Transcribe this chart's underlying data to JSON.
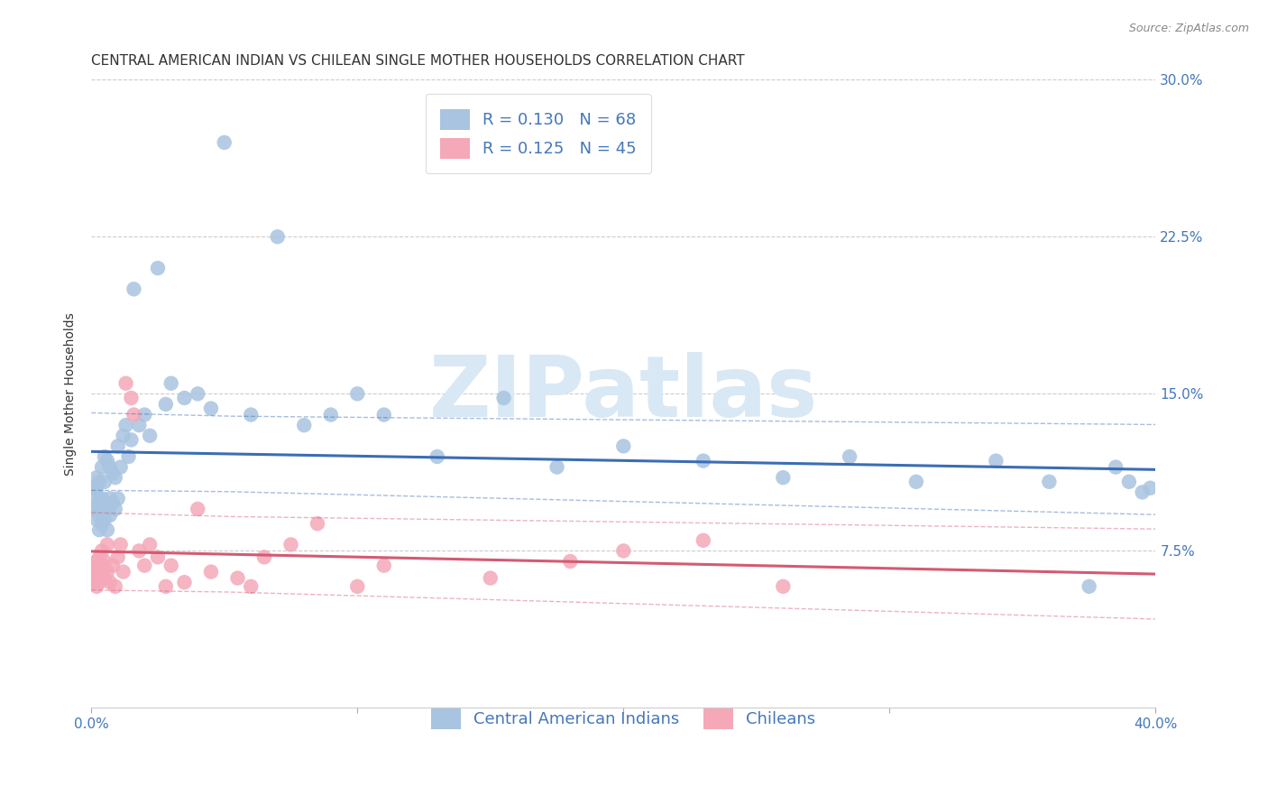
{
  "title": "CENTRAL AMERICAN INDIAN VS CHILEAN SINGLE MOTHER HOUSEHOLDS CORRELATION CHART",
  "source": "Source: ZipAtlas.com",
  "ylabel": "Single Mother Households",
  "xlim": [
    0.0,
    0.4
  ],
  "ylim": [
    0.0,
    0.3
  ],
  "xticks": [
    0.0,
    0.1,
    0.2,
    0.3,
    0.4
  ],
  "xtick_labels": [
    "0.0%",
    "",
    "",
    "",
    "40.0%"
  ],
  "yticks": [
    0.075,
    0.15,
    0.225,
    0.3
  ],
  "right_ytick_labels": [
    "7.5%",
    "15.0%",
    "22.5%",
    "30.0%"
  ],
  "label1": "Central American Indians",
  "label2": "Chileans",
  "blue_color": "#A8C4E0",
  "pink_color": "#F4A8B8",
  "line_blue": "#3B6DB5",
  "line_pink": "#D45A72",
  "watermark": "ZIPatlas",
  "watermark_color": "#D8E8F4",
  "blue_scatter_x": [
    0.001,
    0.001,
    0.001,
    0.002,
    0.002,
    0.002,
    0.002,
    0.003,
    0.003,
    0.003,
    0.003,
    0.004,
    0.004,
    0.004,
    0.004,
    0.005,
    0.005,
    0.005,
    0.005,
    0.006,
    0.006,
    0.006,
    0.007,
    0.007,
    0.007,
    0.008,
    0.008,
    0.009,
    0.009,
    0.01,
    0.01,
    0.011,
    0.012,
    0.013,
    0.014,
    0.015,
    0.016,
    0.018,
    0.02,
    0.022,
    0.025,
    0.028,
    0.03,
    0.035,
    0.04,
    0.045,
    0.05,
    0.06,
    0.07,
    0.08,
    0.09,
    0.1,
    0.11,
    0.13,
    0.155,
    0.175,
    0.2,
    0.23,
    0.26,
    0.285,
    0.31,
    0.34,
    0.36,
    0.375,
    0.385,
    0.39,
    0.395,
    0.398
  ],
  "blue_scatter_y": [
    0.095,
    0.1,
    0.105,
    0.09,
    0.095,
    0.105,
    0.11,
    0.085,
    0.092,
    0.1,
    0.108,
    0.088,
    0.095,
    0.1,
    0.115,
    0.09,
    0.098,
    0.108,
    0.12,
    0.085,
    0.095,
    0.118,
    0.092,
    0.1,
    0.115,
    0.098,
    0.112,
    0.095,
    0.11,
    0.1,
    0.125,
    0.115,
    0.13,
    0.135,
    0.12,
    0.128,
    0.2,
    0.135,
    0.14,
    0.13,
    0.21,
    0.145,
    0.155,
    0.148,
    0.15,
    0.143,
    0.27,
    0.14,
    0.225,
    0.135,
    0.14,
    0.15,
    0.14,
    0.12,
    0.148,
    0.115,
    0.125,
    0.118,
    0.11,
    0.12,
    0.108,
    0.118,
    0.108,
    0.058,
    0.115,
    0.108,
    0.103,
    0.105
  ],
  "pink_scatter_x": [
    0.001,
    0.001,
    0.001,
    0.002,
    0.002,
    0.002,
    0.003,
    0.003,
    0.003,
    0.004,
    0.004,
    0.005,
    0.005,
    0.006,
    0.006,
    0.007,
    0.008,
    0.009,
    0.01,
    0.011,
    0.012,
    0.013,
    0.015,
    0.016,
    0.018,
    0.02,
    0.022,
    0.025,
    0.028,
    0.03,
    0.035,
    0.04,
    0.045,
    0.055,
    0.06,
    0.065,
    0.075,
    0.085,
    0.1,
    0.11,
    0.15,
    0.18,
    0.2,
    0.23,
    0.26
  ],
  "pink_scatter_y": [
    0.065,
    0.068,
    0.06,
    0.063,
    0.07,
    0.058,
    0.065,
    0.072,
    0.06,
    0.068,
    0.075,
    0.062,
    0.07,
    0.065,
    0.078,
    0.06,
    0.068,
    0.058,
    0.072,
    0.078,
    0.065,
    0.155,
    0.148,
    0.14,
    0.075,
    0.068,
    0.078,
    0.072,
    0.058,
    0.068,
    0.06,
    0.095,
    0.065,
    0.062,
    0.058,
    0.072,
    0.078,
    0.088,
    0.058,
    0.068,
    0.062,
    0.07,
    0.075,
    0.08,
    0.058
  ],
  "title_fontsize": 11,
  "axis_label_fontsize": 10,
  "tick_fontsize": 11,
  "legend_fontsize": 13
}
